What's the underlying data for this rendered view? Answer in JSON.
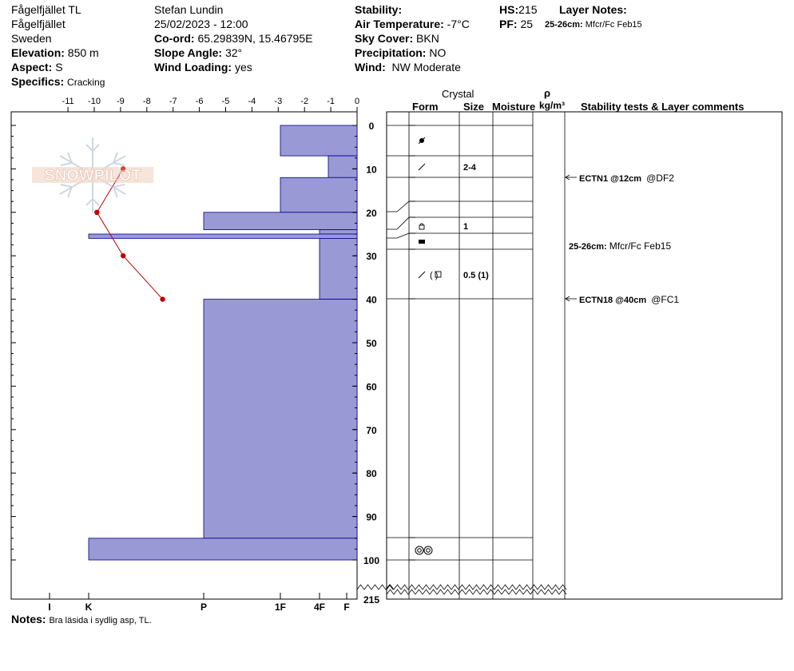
{
  "header": {
    "location": "Fågelfjället TL",
    "sublocation": "Fågelfjället",
    "country": "Sweden",
    "elevation_label": "Elevation:",
    "elevation_value": "850 m",
    "aspect_label": "Aspect:",
    "aspect_value": "S",
    "specifics_label": "Specifics:",
    "specifics_value": "Cracking",
    "observer": "Stefan Lundin",
    "datetime": "25/02/2023 - 12:00",
    "coord_label": "Co-ord:",
    "coord_value": "65.29839N, 15.46795E",
    "slope_label": "Slope Angle:",
    "slope_value": "32°",
    "wind_loading_label": "Wind Loading:",
    "wind_loading_value": "yes",
    "stability_label": "Stability:",
    "air_temp_label": "Air Temperature:",
    "air_temp_value": "-7°C",
    "sky_label": "Sky Cover:",
    "sky_value": "BKN",
    "precip_label": "Precipitation:",
    "precip_value": "NO",
    "wind_label": "Wind:",
    "wind_value": "NW Moderate",
    "hs_label": "HS:",
    "hs_value": "215",
    "pf_label": "PF:",
    "pf_value": "25",
    "layer_notes_label": "Layer Notes:",
    "layer_note_depth": "25-26cm:",
    "layer_note_text": "Mfcr/Fc Feb15"
  },
  "logo_text": "SNOWPILOT",
  "notes_label": "Notes:",
  "notes_value": "Bra läsida i sydlig asp, TL.",
  "colors": {
    "hardness_fill": "#9999d6",
    "hardness_stroke": "#00008b",
    "temp_line": "#c00000"
  },
  "chart_data": {
    "type": "snow_profile",
    "depth_ticks": [
      "0",
      "10",
      "20",
      "30",
      "40",
      "50",
      "60",
      "70",
      "80",
      "90",
      "100",
      "215"
    ],
    "temperature_axis": {
      "ticks": [
        "-11",
        "-10",
        "-9",
        "-8",
        "-7",
        "-6",
        "-5",
        "-4",
        "-3",
        "-2",
        "-1",
        "0"
      ],
      "range": [
        -11.2,
        0
      ]
    },
    "hardness_axis": {
      "ticks": [
        "I",
        "K",
        "P",
        "1F",
        "4F",
        "F"
      ]
    },
    "temperature_profile": [
      {
        "depth": 10,
        "temp": -8.9
      },
      {
        "depth": 20,
        "temp": -9.9
      },
      {
        "depth": 30,
        "temp": -8.9
      },
      {
        "depth": 40,
        "temp": -7.4
      }
    ],
    "hardness_layers": [
      {
        "top": 0,
        "bottom": 7,
        "hardness": "1F"
      },
      {
        "top": 7,
        "bottom": 12,
        "hardness": "4F+"
      },
      {
        "top": 12,
        "bottom": 20,
        "hardness": "1F"
      },
      {
        "top": 20,
        "bottom": 24,
        "hardness": "P"
      },
      {
        "top": 24,
        "bottom": 25,
        "hardness": "4F"
      },
      {
        "top": 25,
        "bottom": 26,
        "hardness": "K+"
      },
      {
        "top": 26,
        "bottom": 40,
        "hardness": "4F"
      },
      {
        "top": 40,
        "bottom": 95,
        "hardness": "P"
      },
      {
        "top": 95,
        "bottom": 100,
        "hardness": "K+"
      }
    ],
    "table_headers": {
      "crystal": "Crystal",
      "form": "Form",
      "size": "Size",
      "moisture": "Moisture",
      "rho": "ρ",
      "density_unit": "kg/m³",
      "comments": "Stability tests & Layer comments"
    },
    "layer_rows": [
      {
        "size": ""
      },
      {
        "size": "2-4"
      },
      {
        "size": ""
      },
      {
        "size": ""
      },
      {
        "size": "1"
      },
      {
        "size": ""
      },
      {
        "size": ""
      },
      {
        "size": "0.5 (1)"
      },
      {
        "size": ""
      },
      {
        "size": ""
      },
      {
        "size": ""
      }
    ],
    "tests": [
      {
        "result": "ECTN1 @12cm",
        "fracture": "@DF2"
      },
      {
        "result": "ECTN18 @40cm",
        "fracture": "@FC1"
      }
    ],
    "layer_comment": {
      "depth": "25-26cm:",
      "text": "Mfcr/Fc Feb15"
    }
  }
}
